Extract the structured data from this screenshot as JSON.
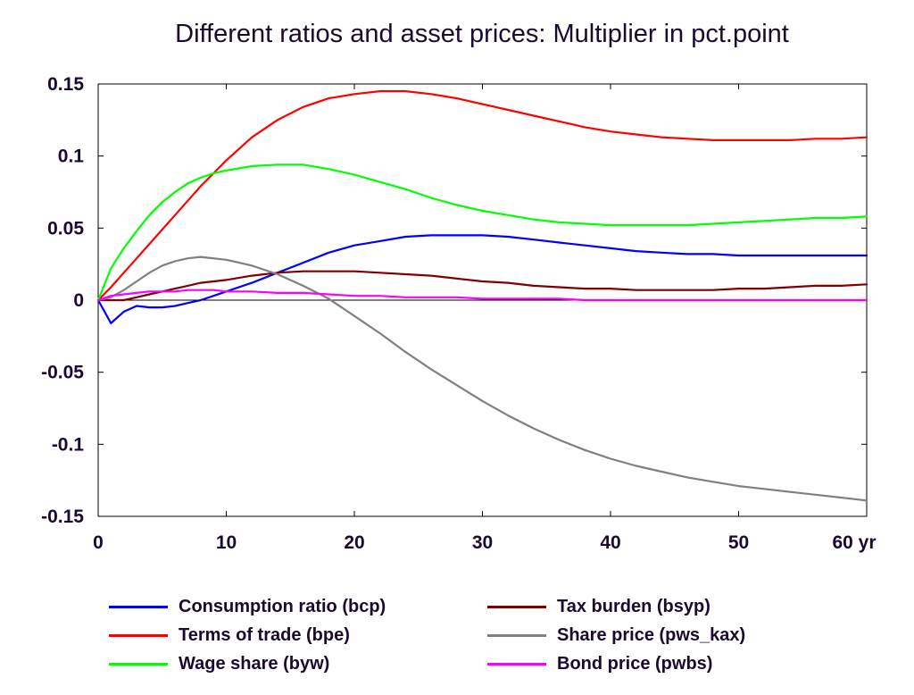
{
  "chart_data": {
    "type": "line",
    "title": "Different ratios and asset prices: Multiplier in pct.point",
    "xlabel": "",
    "ylabel": "",
    "x_unit": "yr",
    "xlim": [
      0,
      60
    ],
    "ylim": [
      -0.15,
      0.15
    ],
    "x_ticks": [
      0,
      10,
      20,
      30,
      40,
      50,
      60
    ],
    "x_tick_labels": [
      "0",
      "10",
      "20",
      "30",
      "40",
      "50",
      "60 yr"
    ],
    "y_ticks": [
      0.15,
      0.1,
      0.05,
      0,
      -0.05,
      -0.1,
      -0.15
    ],
    "y_tick_labels": [
      "0.15",
      "0.1",
      "0.05",
      "0",
      "-0.05",
      "-0.1",
      "-0.15"
    ],
    "grid": false,
    "zero_line": true,
    "legend_position": "bottom",
    "x": [
      0,
      1,
      2,
      3,
      4,
      5,
      6,
      7,
      8,
      9,
      10,
      12,
      14,
      16,
      18,
      20,
      22,
      24,
      26,
      28,
      30,
      32,
      34,
      36,
      38,
      40,
      42,
      44,
      46,
      48,
      50,
      52,
      54,
      56,
      58,
      60
    ],
    "series": [
      {
        "name": "Consumption ratio (bcp)",
        "color": "#0000ff",
        "values": [
          0,
          -0.016,
          -0.008,
          -0.004,
          -0.005,
          -0.005,
          -0.004,
          -0.002,
          0.0,
          0.003,
          0.006,
          0.012,
          0.019,
          0.026,
          0.033,
          0.038,
          0.041,
          0.044,
          0.045,
          0.045,
          0.045,
          0.044,
          0.042,
          0.04,
          0.038,
          0.036,
          0.034,
          0.033,
          0.032,
          0.032,
          0.031,
          0.031,
          0.031,
          0.031,
          0.031,
          0.031
        ]
      },
      {
        "name": "Terms of trade (bpe)",
        "color": "#ff0000",
        "values": [
          0,
          0.009,
          0.019,
          0.029,
          0.039,
          0.049,
          0.059,
          0.069,
          0.079,
          0.088,
          0.097,
          0.113,
          0.125,
          0.134,
          0.14,
          0.143,
          0.145,
          0.145,
          0.143,
          0.14,
          0.136,
          0.132,
          0.128,
          0.124,
          0.12,
          0.117,
          0.115,
          0.113,
          0.112,
          0.111,
          0.111,
          0.111,
          0.111,
          0.112,
          0.112,
          0.113
        ]
      },
      {
        "name": "Wage share (byw)",
        "color": "#00ff00",
        "values": [
          0,
          0.022,
          0.036,
          0.048,
          0.059,
          0.068,
          0.075,
          0.081,
          0.085,
          0.088,
          0.09,
          0.093,
          0.094,
          0.094,
          0.091,
          0.087,
          0.082,
          0.077,
          0.071,
          0.066,
          0.062,
          0.059,
          0.056,
          0.054,
          0.053,
          0.052,
          0.052,
          0.052,
          0.052,
          0.053,
          0.054,
          0.055,
          0.056,
          0.057,
          0.057,
          0.058
        ]
      },
      {
        "name": "Tax burden (bsyp)",
        "color": "#800000",
        "values": [
          0,
          0.0,
          0.0,
          0.002,
          0.004,
          0.006,
          0.008,
          0.01,
          0.012,
          0.013,
          0.014,
          0.017,
          0.019,
          0.02,
          0.02,
          0.02,
          0.019,
          0.018,
          0.017,
          0.015,
          0.013,
          0.012,
          0.01,
          0.009,
          0.008,
          0.008,
          0.007,
          0.007,
          0.007,
          0.007,
          0.008,
          0.008,
          0.009,
          0.01,
          0.01,
          0.011
        ]
      },
      {
        "name": "Share price (pws_kax)",
        "color": "#808080",
        "values": [
          0,
          0.002,
          0.007,
          0.013,
          0.019,
          0.024,
          0.027,
          0.029,
          0.03,
          0.029,
          0.028,
          0.024,
          0.018,
          0.01,
          0.001,
          -0.011,
          -0.023,
          -0.036,
          -0.048,
          -0.059,
          -0.07,
          -0.08,
          -0.089,
          -0.097,
          -0.104,
          -0.11,
          -0.115,
          -0.119,
          -0.123,
          -0.126,
          -0.129,
          -0.131,
          -0.133,
          -0.135,
          -0.137,
          -0.139
        ]
      },
      {
        "name": "Bond price (pwbs)",
        "color": "#ff00ff",
        "values": [
          0,
          0.003,
          0.004,
          0.005,
          0.006,
          0.006,
          0.006,
          0.007,
          0.007,
          0.007,
          0.006,
          0.006,
          0.005,
          0.005,
          0.004,
          0.003,
          0.003,
          0.002,
          0.002,
          0.002,
          0.001,
          0.001,
          0.001,
          0.001,
          0.0,
          0.0,
          0.0,
          0.0,
          0.0,
          0.0,
          0.0,
          0.0,
          0.0,
          0.0,
          0.0,
          0.0
        ]
      }
    ]
  }
}
